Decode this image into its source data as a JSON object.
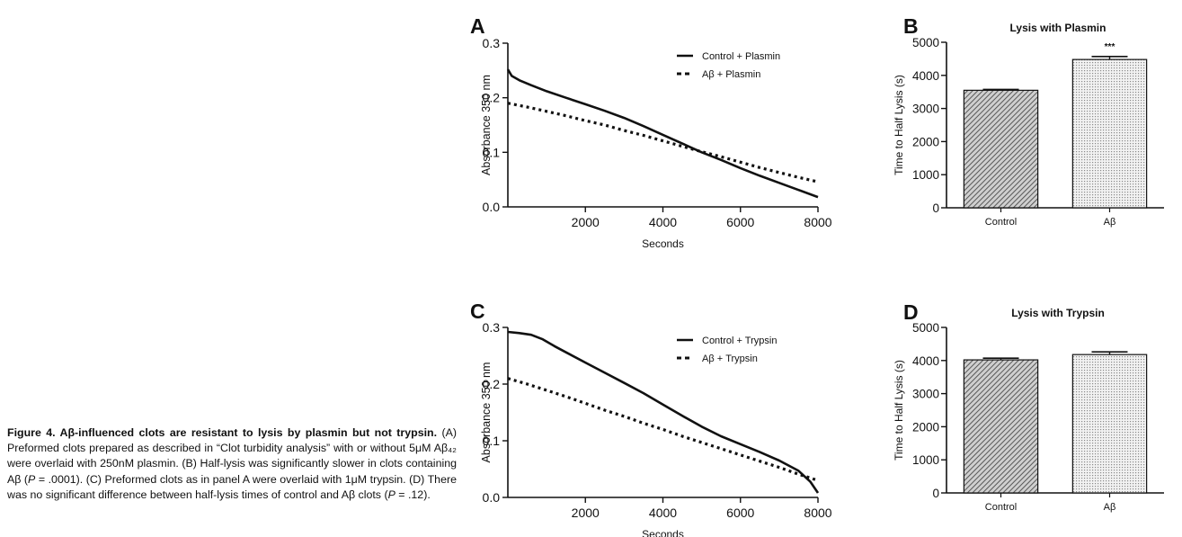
{
  "figure": {
    "caption": {
      "title": "Figure 4. Aβ-influenced clots are resistant to lysis by plasmin but not trypsin.",
      "s1": "(A) Preformed clots prepared as described in “Clot turbidity analysis” with or without 5μM Aβ₄₂ were overlaid with 250nM plasmin.",
      "s2a": "(B) Half-lysis was significantly slower in clots containing Aβ (",
      "s2p": "P",
      "s2b": " = .0001).",
      "s3": "(C) Preformed clots as in panel A were overlaid with 1μM trypsin.",
      "s4a": "(D) There was no significant difference between half-lysis times of control and Aβ clots (",
      "s4p": "P",
      "s4b": " = .12)."
    }
  },
  "chart_data": [
    {
      "panel": "A",
      "type": "line",
      "xlabel": "Seconds",
      "ylabel": "Absorbance 350 nm",
      "xlim": [
        0,
        8000
      ],
      "ylim": [
        0,
        0.3
      ],
      "xticks": [
        "2000",
        "4000",
        "6000",
        "8000"
      ],
      "yticks": [
        "0.0",
        "0.1",
        "0.2",
        "0.3"
      ],
      "legend_position": "top-right",
      "series": [
        {
          "name": "Control + Plasmin",
          "style": "solid",
          "x": [
            0,
            100,
            300,
            600,
            1000,
            1500,
            2000,
            2500,
            3000,
            3500,
            4000,
            4500,
            5000,
            5500,
            6000,
            6500,
            7000,
            7500,
            8000
          ],
          "y": [
            0.252,
            0.24,
            0.232,
            0.223,
            0.212,
            0.2,
            0.188,
            0.176,
            0.163,
            0.148,
            0.132,
            0.116,
            0.1,
            0.086,
            0.071,
            0.057,
            0.044,
            0.031,
            0.018
          ]
        },
        {
          "name": "Aβ + Plasmin",
          "style": "dotted",
          "x": [
            0,
            500,
            1000,
            1500,
            2000,
            2500,
            3000,
            3500,
            4000,
            4500,
            5000,
            5500,
            6000,
            6500,
            7000,
            7500,
            8000
          ],
          "y": [
            0.19,
            0.183,
            0.175,
            0.167,
            0.158,
            0.15,
            0.14,
            0.131,
            0.121,
            0.111,
            0.101,
            0.092,
            0.082,
            0.072,
            0.063,
            0.054,
            0.046
          ]
        }
      ]
    },
    {
      "panel": "B",
      "type": "bar",
      "title": "Lysis with Plasmin",
      "ylabel": "Time to Half Lysis (s)",
      "ylim": [
        0,
        5000
      ],
      "yticks": [
        "0",
        "1000",
        "2000",
        "3000",
        "4000",
        "5000"
      ],
      "categories": [
        "Control",
        "Aβ"
      ],
      "values": [
        3550,
        4480
      ],
      "errors": [
        25,
        90
      ],
      "annotations": [
        "",
        "***"
      ]
    },
    {
      "panel": "C",
      "type": "line",
      "xlabel": "Seconds",
      "ylabel": "Absorbance 350 nm",
      "xlim": [
        0,
        8000
      ],
      "ylim": [
        0,
        0.3
      ],
      "xticks": [
        "2000",
        "4000",
        "6000",
        "8000"
      ],
      "yticks": [
        "0.0",
        "0.1",
        "0.2",
        "0.3"
      ],
      "legend_position": "top-right",
      "series": [
        {
          "name": "Control + Trypsin",
          "style": "solid",
          "x": [
            0,
            300,
            600,
            900,
            1200,
            1500,
            2000,
            2500,
            3000,
            3500,
            4000,
            4500,
            5000,
            5500,
            6000,
            6500,
            7000,
            7500,
            7800,
            8000
          ],
          "y": [
            0.292,
            0.29,
            0.287,
            0.279,
            0.267,
            0.256,
            0.238,
            0.22,
            0.202,
            0.184,
            0.164,
            0.144,
            0.125,
            0.108,
            0.094,
            0.08,
            0.065,
            0.047,
            0.028,
            0.008
          ]
        },
        {
          "name": "Aβ + Trypsin",
          "style": "dotted",
          "x": [
            0,
            500,
            1000,
            1500,
            2000,
            2500,
            3000,
            3500,
            4000,
            4500,
            5000,
            5500,
            6000,
            6500,
            7000,
            7500,
            8000
          ],
          "y": [
            0.21,
            0.2,
            0.189,
            0.178,
            0.166,
            0.154,
            0.143,
            0.131,
            0.12,
            0.108,
            0.097,
            0.086,
            0.075,
            0.064,
            0.053,
            0.041,
            0.03
          ]
        }
      ]
    },
    {
      "panel": "D",
      "type": "bar",
      "title": "Lysis with Trypsin",
      "ylabel": "Time to Half Lysis (s)",
      "ylim": [
        0,
        5000
      ],
      "yticks": [
        "0",
        "1000",
        "2000",
        "3000",
        "4000",
        "5000"
      ],
      "categories": [
        "Control",
        "Aβ"
      ],
      "values": [
        4020,
        4180
      ],
      "errors": [
        50,
        80
      ],
      "annotations": [
        "",
        ""
      ]
    }
  ],
  "colors": {
    "ink": "#111111",
    "bar_fill": "#bdbdbd"
  }
}
